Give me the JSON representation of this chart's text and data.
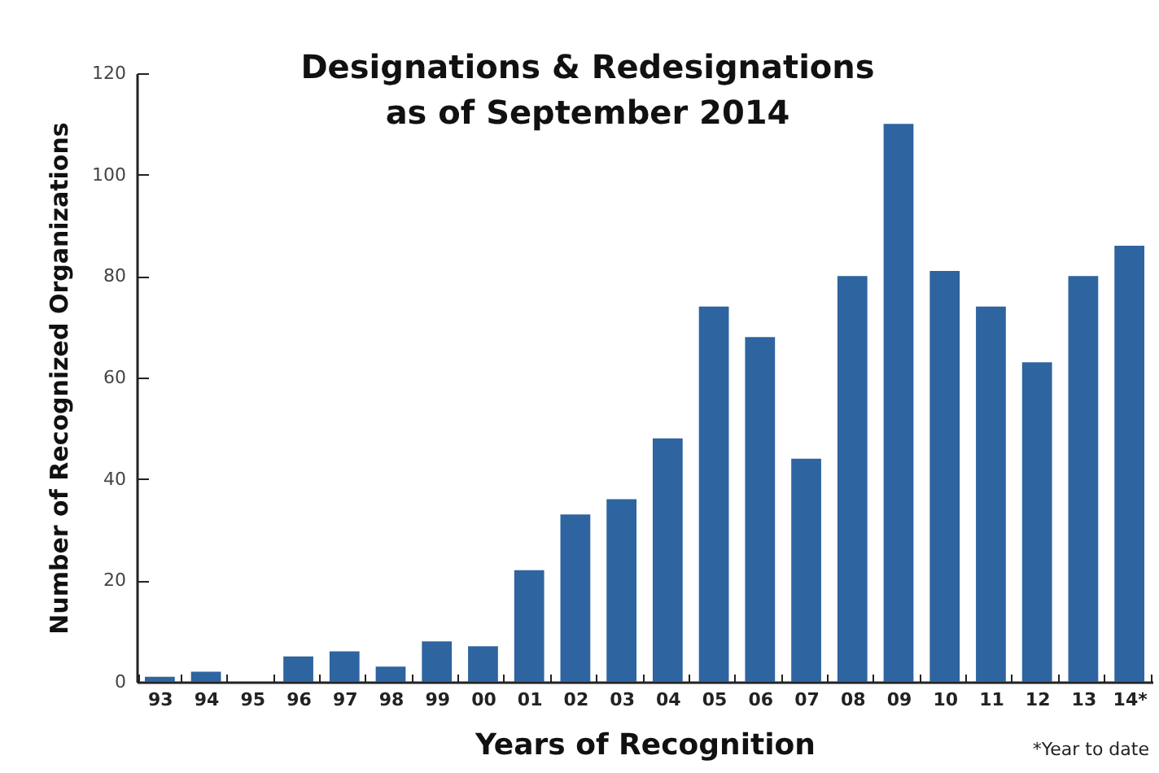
{
  "chart_data": {
    "type": "bar",
    "title": "Designations & Redesignations\nas of September 2014",
    "xlabel": "Years of Recognition",
    "ylabel": "Number of Recognized Organizations",
    "categories": [
      "93",
      "94",
      "95",
      "96",
      "97",
      "98",
      "99",
      "00",
      "01",
      "02",
      "03",
      "04",
      "05",
      "06",
      "07",
      "08",
      "09",
      "10",
      "11",
      "12",
      "13",
      "14*"
    ],
    "values": [
      1,
      2,
      0,
      5,
      6,
      3,
      8,
      7,
      22,
      33,
      36,
      48,
      74,
      68,
      44,
      80,
      110,
      81,
      74,
      63,
      80,
      86
    ],
    "color": "#2e64a0",
    "ylim": [
      0,
      120
    ],
    "yticks": [
      0,
      20,
      40,
      60,
      80,
      100,
      120
    ],
    "grid": false,
    "annotations": [
      "*Year to date"
    ]
  }
}
